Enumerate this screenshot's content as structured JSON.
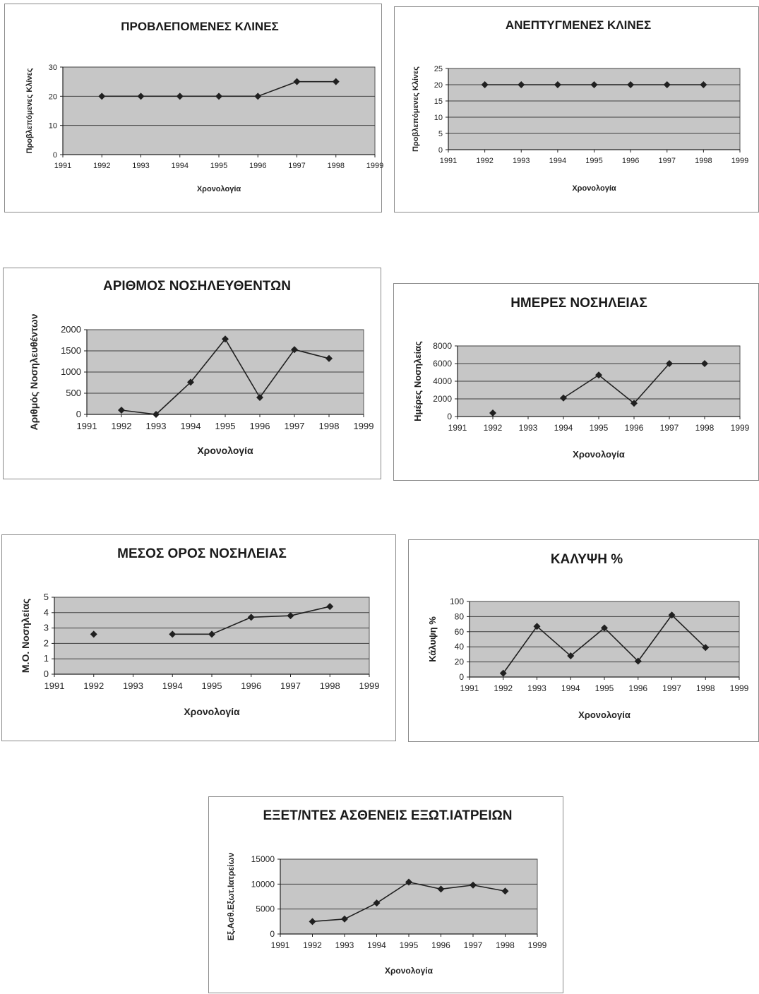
{
  "colors": {
    "plot_bg": "#c6c6c6",
    "grid": "#404040",
    "line": "#202020",
    "marker": "#202020"
  },
  "chart_data": [
    {
      "id": "c1",
      "type": "line",
      "title": "ΠΡΟΒΛΕΠΟΜΕΝΕΣ ΚΛΙΝΕΣ",
      "xlabel": "Χρονολογία",
      "ylabel": "Προβλεπόμενες Κλίνες",
      "xlim": [
        1991,
        1999
      ],
      "ylim": [
        0,
        30
      ],
      "yticks": [
        0,
        10,
        20,
        30
      ],
      "x": [
        1992,
        1993,
        1994,
        1995,
        1996,
        1997,
        1998
      ],
      "series": [
        {
          "values": [
            20,
            20,
            20,
            20,
            20,
            25,
            25
          ]
        }
      ],
      "grid": true,
      "legend": "none"
    },
    {
      "id": "c2",
      "type": "line",
      "title": "ΑΝΕΠΤΥΓΜΕΝΕΣ ΚΛΙΝΕΣ",
      "xlabel": "Χρονολογία",
      "ylabel": "Προβλεπόμενες Κλίνες",
      "xlim": [
        1991,
        1999
      ],
      "ylim": [
        0,
        25
      ],
      "yticks": [
        0,
        5,
        10,
        15,
        20,
        25
      ],
      "x": [
        1992,
        1993,
        1994,
        1995,
        1996,
        1997,
        1998
      ],
      "series": [
        {
          "values": [
            20,
            20,
            20,
            20,
            20,
            20,
            20
          ]
        }
      ],
      "grid": true,
      "legend": "none"
    },
    {
      "id": "c3",
      "type": "line",
      "title": "ΑΡΙΘΜΟΣ ΝΟΣΗΛΕΥΘΕΝΤΩΝ",
      "xlabel": "Χρονολογία",
      "ylabel": "Αριθμός Νοσηλευθέντων",
      "xlim": [
        1991,
        1999
      ],
      "ylim": [
        0,
        2000
      ],
      "yticks": [
        0,
        500,
        1000,
        1500,
        2000
      ],
      "x": [
        1992,
        1993,
        1994,
        1995,
        1996,
        1997,
        1998
      ],
      "series": [
        {
          "values": [
            100,
            0,
            760,
            1780,
            400,
            1530,
            1320
          ]
        }
      ],
      "grid": true,
      "legend": "none"
    },
    {
      "id": "c4",
      "type": "line",
      "title": "ΗΜΕΡΕΣ ΝΟΣΗΛΕΙΑΣ",
      "xlabel": "Χρονολογία",
      "ylabel": "Ημέρες Νοσηλείας",
      "xlim": [
        1991,
        1999
      ],
      "ylim": [
        0,
        8000
      ],
      "yticks": [
        0,
        2000,
        4000,
        6000,
        8000
      ],
      "x": [
        1992,
        1994,
        1995,
        1996,
        1997,
        1998
      ],
      "series": [
        {
          "values": [
            400,
            2100,
            4700,
            1500,
            6000,
            6000
          ]
        }
      ],
      "grid": true,
      "legend": "none"
    },
    {
      "id": "c5",
      "type": "line",
      "title": "ΜΕΣΟΣ ΟΡΟΣ ΝΟΣΗΛΕΙΑΣ",
      "xlabel": "Χρονολογία",
      "ylabel": "Μ.Ο. Νοσηλείας",
      "xlim": [
        1991,
        1999
      ],
      "ylim": [
        0,
        5
      ],
      "yticks": [
        0,
        1,
        2,
        3,
        4,
        5
      ],
      "x": [
        1992,
        1994,
        1995,
        1996,
        1997,
        1998
      ],
      "series": [
        {
          "values": [
            2.6,
            2.6,
            2.6,
            3.7,
            3.8,
            4.4
          ]
        }
      ],
      "grid": true,
      "legend": "none"
    },
    {
      "id": "c6",
      "type": "line",
      "title": "ΚΑΛΥΨΗ %",
      "xlabel": "Χρονολογία",
      "ylabel": "Κάλυψη %",
      "xlim": [
        1991,
        1999
      ],
      "ylim": [
        0,
        100
      ],
      "yticks": [
        0,
        20,
        40,
        60,
        80,
        100
      ],
      "x": [
        1992,
        1993,
        1994,
        1995,
        1996,
        1997,
        1998
      ],
      "series": [
        {
          "values": [
            5,
            67,
            28,
            65,
            21,
            82,
            39
          ]
        }
      ],
      "grid": true,
      "legend": "none"
    },
    {
      "id": "c7",
      "type": "line",
      "title": "ΕΞΕΤ/ΝΤΕΣ ΑΣΘΕΝΕΙΣ ΕΞΩΤ.ΙΑΤΡΕΙΩΝ",
      "xlabel": "Χρονολογία",
      "ylabel": "Εξ.Ασθ.Εξωτ.Ιατρείων",
      "xlim": [
        1991,
        1999
      ],
      "ylim": [
        0,
        15000
      ],
      "yticks": [
        0,
        5000,
        10000,
        15000
      ],
      "x": [
        1992,
        1993,
        1994,
        1995,
        1996,
        1997,
        1998
      ],
      "series": [
        {
          "values": [
            2500,
            3000,
            6200,
            10400,
            9000,
            9800,
            8600
          ]
        }
      ],
      "grid": true,
      "legend": "none"
    }
  ]
}
